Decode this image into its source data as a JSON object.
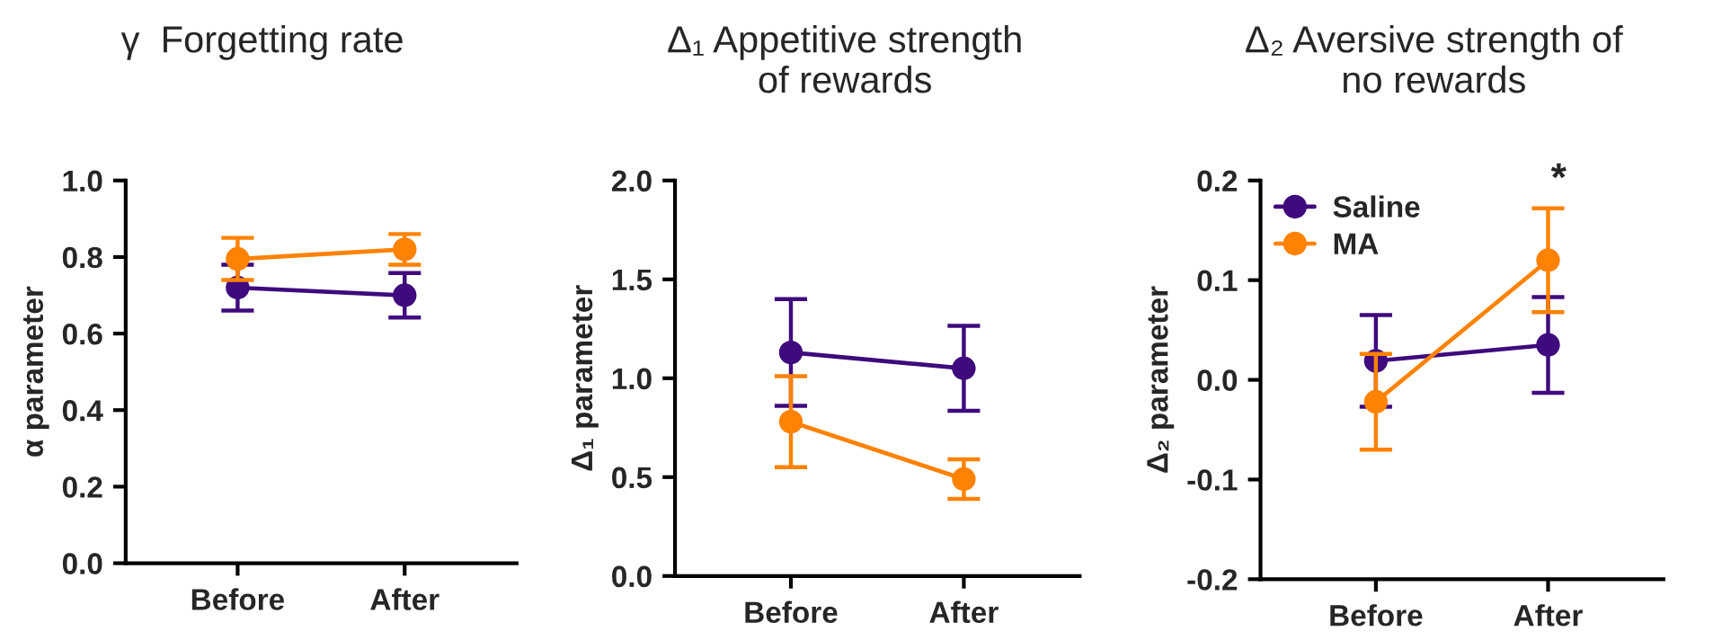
{
  "chart_data": [
    {
      "type": "line",
      "title": "γ  Forgetting rate",
      "ylabel": "α parameter",
      "categories": [
        "Before",
        "After"
      ],
      "marker": "circle",
      "line_style": "solid",
      "ylim": [
        0,
        1
      ],
      "yticks": [
        {
          "value": 0,
          "label": "0.0"
        },
        0.2,
        0.4,
        0.6,
        0.8,
        {
          "value": 1,
          "label": "1.0"
        }
      ],
      "series": [
        {
          "color": "#3f0a7d",
          "values": [
            0.72,
            0.7
          ],
          "errors": [
            0.06,
            0.058
          ]
        },
        {
          "color": "#ff8200",
          "values": [
            0.795,
            0.82
          ],
          "errors": [
            0.055,
            0.04
          ]
        }
      ]
    },
    {
      "type": "line",
      "title": "Δ₁ Appetitive strength\nof rewards",
      "ylabel": "Δ₁ parameter",
      "categories": [
        "Before",
        "After"
      ],
      "marker": "circle",
      "line_style": "solid",
      "ylim": [
        0,
        2
      ],
      "yticks": [
        {
          "value": 0,
          "label": "0.0"
        },
        0.5,
        {
          "value": 1,
          "label": "1.0"
        },
        1.5,
        {
          "value": 2,
          "label": "2.0"
        }
      ],
      "series": [
        {
          "color": "#3f0a7d",
          "values": [
            1.13,
            1.05
          ],
          "errors": [
            0.27,
            0.215
          ]
        },
        {
          "color": "#ff8200",
          "values": [
            0.78,
            0.49
          ],
          "errors": [
            0.23,
            0.1
          ]
        }
      ]
    },
    {
      "type": "line",
      "title": "Δ₂ Aversive strength of\nno rewards",
      "ylabel": "Δ₂ parameter",
      "categories": [
        "Before",
        "After"
      ],
      "marker": "circle",
      "line_style": "solid",
      "legend": "top left",
      "ylim": [
        -0.2,
        0.2
      ],
      "yticks": [
        -0.2,
        -0.1,
        {
          "value": 0,
          "label": "0.0"
        },
        0.1,
        0.2
      ],
      "annotations": [
        "*"
      ],
      "series": [
        {
          "name": "Saline",
          "color": "#3f0a7d",
          "values": [
            0.019,
            0.035
          ],
          "errors": [
            0.046,
            0.048
          ]
        },
        {
          "name": "MA",
          "color": "#ff8200",
          "values": [
            -0.022,
            0.12
          ],
          "errors": [
            0.048,
            0.052
          ]
        }
      ]
    }
  ]
}
